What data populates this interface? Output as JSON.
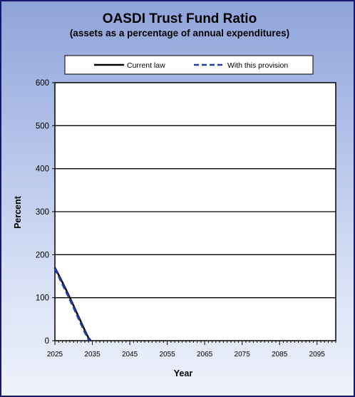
{
  "chart_data": {
    "type": "line",
    "title": "OASDI  Trust Fund Ratio",
    "subtitle": "(assets as a percentage of annual expenditures)",
    "xlabel": "Year",
    "ylabel": "Percent",
    "xlim": [
      2025,
      2100
    ],
    "ylim": [
      0,
      600
    ],
    "xticks": [
      2025,
      2035,
      2045,
      2055,
      2065,
      2075,
      2085,
      2095
    ],
    "yticks": [
      0,
      100,
      200,
      300,
      400,
      500,
      600
    ],
    "grid": "horizontal",
    "legend_position": "top",
    "series": [
      {
        "name": "Current law",
        "style": "solid",
        "color": "#000000",
        "x": [
          2025,
          2026,
          2027,
          2028,
          2029,
          2030,
          2031,
          2032,
          2033,
          2034,
          2034.6
        ],
        "y": [
          170,
          153,
          136,
          118,
          100,
          81,
          62,
          43,
          24,
          6,
          0
        ]
      },
      {
        "name": "With this provision",
        "style": "dashed",
        "color": "#1f3da6",
        "x": [
          2025,
          2026,
          2027,
          2028,
          2029,
          2030,
          2031,
          2032,
          2033,
          2034,
          2034.4
        ],
        "y": [
          168,
          150,
          132,
          114,
          96,
          77,
          58,
          39,
          20,
          3,
          0
        ]
      }
    ]
  }
}
